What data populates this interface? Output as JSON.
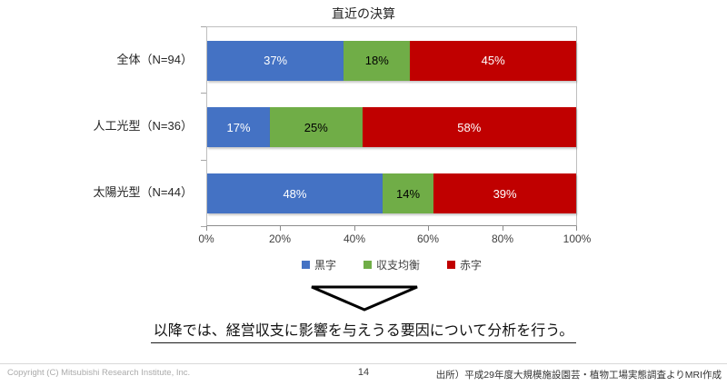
{
  "title": "直近の決算",
  "chart_data": {
    "type": "bar",
    "stacked": true,
    "orientation": "horizontal",
    "title": "直近の決算",
    "categories": [
      "全体（N=94）",
      "人工光型（N=36）",
      "太陽光型（N=44）"
    ],
    "series": [
      {
        "name": "黒字",
        "color": "#4472C4",
        "label_color": "#FFFFFF",
        "values": [
          37,
          17,
          48
        ]
      },
      {
        "name": "収支均衡",
        "color": "#70AD47",
        "label_color": "#000000",
        "values": [
          18,
          25,
          14
        ]
      },
      {
        "name": "赤字",
        "color": "#C00000",
        "label_color": "#FFFFFF",
        "values": [
          45,
          58,
          39
        ]
      }
    ],
    "value_suffix": "%",
    "xlim": [
      0,
      100
    ],
    "x_tick_labels": [
      "0%",
      "20%",
      "40%",
      "60%",
      "80%",
      "100%"
    ],
    "gridlines": false,
    "legend_position": "bottom"
  },
  "annotation": {
    "text": "以降では、経営収支に影響を与えうる要因について分析を行う。"
  },
  "footer": {
    "copyright": "Copyright (C) Mitsubishi Research Institute, Inc.",
    "page_number": "14",
    "source": "出所）平成29年度大規模施設園芸・植物工場実態調査よりMRI作成"
  }
}
